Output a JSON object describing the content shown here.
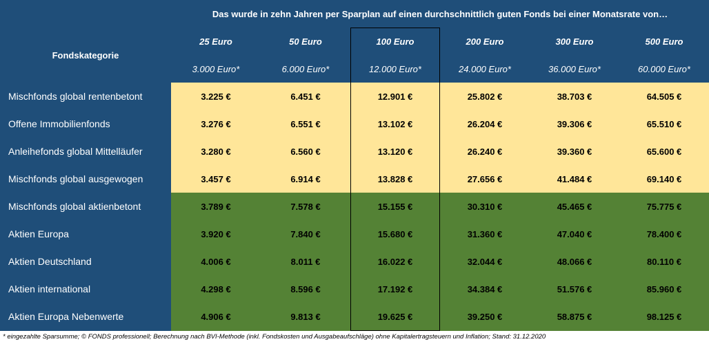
{
  "header": {
    "title": "Das wurde in zehn Jahren per Sparplan auf einen durchschnittlich guten Fonds bei einer Monatsrate von…",
    "category_label": "Fondskategorie",
    "columns": [
      {
        "rate": "25 Euro",
        "sum": "3.000 Euro*"
      },
      {
        "rate": "50 Euro",
        "sum": "6.000 Euro*"
      },
      {
        "rate": "100 Euro",
        "sum": "12.000 Euro*"
      },
      {
        "rate": "200 Euro",
        "sum": "24.000 Euro*"
      },
      {
        "rate": "300 Euro",
        "sum": "36.000 Euro*"
      },
      {
        "rate": "500 Euro",
        "sum": "60.000 Euro*"
      }
    ]
  },
  "rows": [
    {
      "label": "Mischfonds global rentenbetont",
      "values": [
        "3.225 €",
        "6.451 €",
        "12.901 €",
        "25.802 €",
        "38.703 €",
        "64.505 €"
      ]
    },
    {
      "label": "Offene Immobilienfonds",
      "values": [
        "3.276 €",
        "6.551 €",
        "13.102 €",
        "26.204 €",
        "39.306 €",
        "65.510 €"
      ]
    },
    {
      "label": "Anleihefonds global Mittelläufer",
      "values": [
        "3.280 €",
        "6.560 €",
        "13.120 €",
        "26.240 €",
        "39.360 €",
        "65.600 €"
      ]
    },
    {
      "label": "Mischfonds global ausgewogen",
      "values": [
        "3.457 €",
        "6.914 €",
        "13.828 €",
        "27.656 €",
        "41.484 €",
        "69.140 €"
      ]
    },
    {
      "label": "Mischfonds global aktienbetont",
      "values": [
        "3.789 €",
        "7.578 €",
        "15.155 €",
        "30.310 €",
        "45.465 €",
        "75.775 €"
      ]
    },
    {
      "label": "Aktien Europa",
      "values": [
        "3.920 €",
        "7.840 €",
        "15.680 €",
        "31.360 €",
        "47.040 €",
        "78.400 €"
      ]
    },
    {
      "label": "Aktien Deutschland",
      "values": [
        "4.006 €",
        "8.011 €",
        "16.022 €",
        "32.044 €",
        "48.066 €",
        "80.110 €"
      ]
    },
    {
      "label": "Aktien international",
      "values": [
        "4.298 €",
        "8.596 €",
        "17.192 €",
        "34.384 €",
        "51.576 €",
        "85.960 €"
      ]
    },
    {
      "label": "Aktien Europa Nebenwerte",
      "values": [
        "4.906 €",
        "9.813 €",
        "19.625 €",
        "39.250 €",
        "58.875 €",
        "98.125 €"
      ]
    }
  ],
  "footer": "* eingezahlte Sparsumme; © FONDS professionell; Berechnung nach BVI-Methode (inkl. Fondskosten und Ausgabeaufschläge) ohne Kapitalertragsteuern und Inflation; Stand: 31.12.2020",
  "colors": {
    "header_bg": "#1f4e79",
    "yellow_band": "#ffe699",
    "green_band": "#548235"
  }
}
